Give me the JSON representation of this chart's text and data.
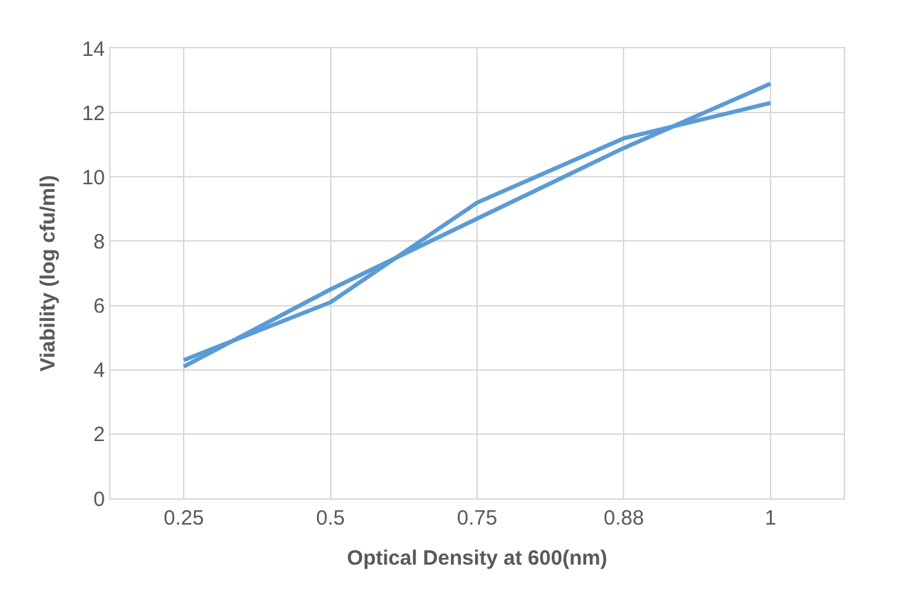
{
  "chart_data": {
    "type": "line",
    "xlabel": "Optical Density at 600(nm)",
    "ylabel": "Viability (log cfu/ml)",
    "categories": [
      "0.25",
      "0.5",
      "0.75",
      "0.88",
      "1"
    ],
    "series": [
      {
        "color": "#5b9bd5",
        "values": [
          4.3,
          6.1,
          9.2,
          11.2,
          12.3
        ]
      },
      {
        "color": "#5b9bd5",
        "values": [
          4.1,
          6.5,
          8.7,
          10.9,
          12.9
        ]
      }
    ],
    "ylim": [
      0,
      14
    ],
    "yticks": [
      0,
      2,
      4,
      6,
      8,
      10,
      12,
      14
    ],
    "grid": true,
    "marker": "none",
    "line_style": "solid"
  }
}
